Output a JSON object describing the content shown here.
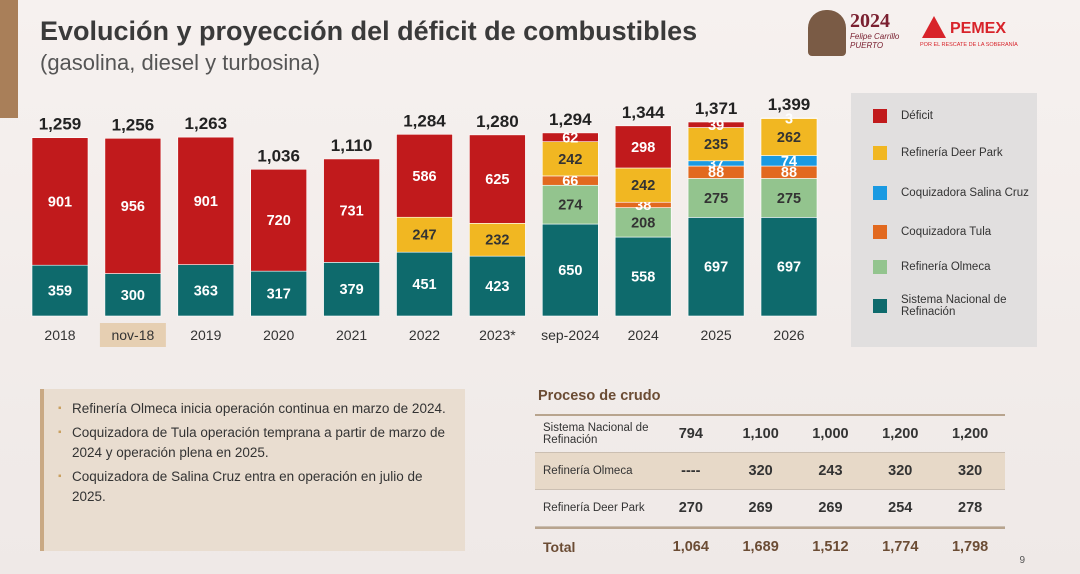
{
  "title": "Evolución y proyección del déficit de combustibles",
  "subtitle": "(gasolina, diesel y turbosina)",
  "logos": {
    "year": "2024",
    "name": "Felipe Carrillo PUERTO",
    "brand": "PEMEX",
    "motto": "POR EL RESCATE DE LA SOBERANÍA"
  },
  "chart_data": {
    "type": "stacked_bar",
    "categories": [
      "2018",
      "nov-18",
      "2019",
      "2020",
      "2021",
      "2022",
      "2023*",
      "sep-2024",
      "2024",
      "2025",
      "2026"
    ],
    "highlight_category": "nov-18",
    "series": [
      {
        "name": "Sistema Nacional de Refinación",
        "color": "#0e6a6c",
        "values": [
          359,
          300,
          363,
          317,
          379,
          451,
          423,
          650,
          558,
          697,
          697
        ]
      },
      {
        "name": "Refinería Olmeca",
        "color": "#93c48e",
        "values": [
          null,
          null,
          null,
          null,
          null,
          null,
          null,
          274,
          208,
          275,
          275
        ]
      },
      {
        "name": "Coquizadora Tula",
        "color": "#e2691f",
        "values": [
          null,
          null,
          null,
          null,
          null,
          null,
          null,
          66,
          38,
          88,
          88
        ]
      },
      {
        "name": "Coquizadora Salina Cruz",
        "color": "#1a9ae2",
        "values": [
          null,
          null,
          null,
          null,
          null,
          null,
          null,
          null,
          null,
          37,
          74
        ]
      },
      {
        "name": "Refinería Deer Park",
        "color": "#f1b722",
        "values": [
          null,
          null,
          null,
          null,
          null,
          247,
          232,
          242,
          242,
          235,
          262
        ]
      },
      {
        "name": "Déficit",
        "color": "#c11a1c",
        "values": [
          901,
          956,
          901,
          720,
          731,
          586,
          625,
          62,
          298,
          39,
          3
        ]
      }
    ],
    "totals": {
      "values": [
        1259,
        1256,
        1263,
        1036,
        1110,
        1284,
        1280,
        1294,
        1344,
        1371,
        1399
      ],
      "value_labels": [
        "1,259",
        "1,256",
        "1,263",
        "1,036",
        "1,110",
        "1,284",
        "1,280",
        "1,294",
        "1,344",
        "1,371",
        "1,399"
      ]
    }
  },
  "bullets": [
    "Refinería Olmeca inicia operación continua en marzo de 2024.",
    "Coquizadora de Tula operación temprana a partir de marzo de 2024 y operación plena en 2025.",
    "Coquizadora de Salina Cruz entra en operación en julio de 2025."
  ],
  "table": {
    "title": "Proceso de crudo",
    "rows": [
      [
        "Sistema Nacional de Refinación",
        "794",
        "1,100",
        "1,000",
        "1,200",
        "1,200"
      ],
      [
        "Refinería Olmeca",
        "----",
        "320",
        "243",
        "320",
        "320"
      ],
      [
        "Refinería Deer Park",
        "270",
        "269",
        "269",
        "254",
        "278"
      ],
      [
        "Total",
        "1,064",
        "1,689",
        "1,512",
        "1,774",
        "1,798"
      ]
    ]
  },
  "page_number": "9"
}
